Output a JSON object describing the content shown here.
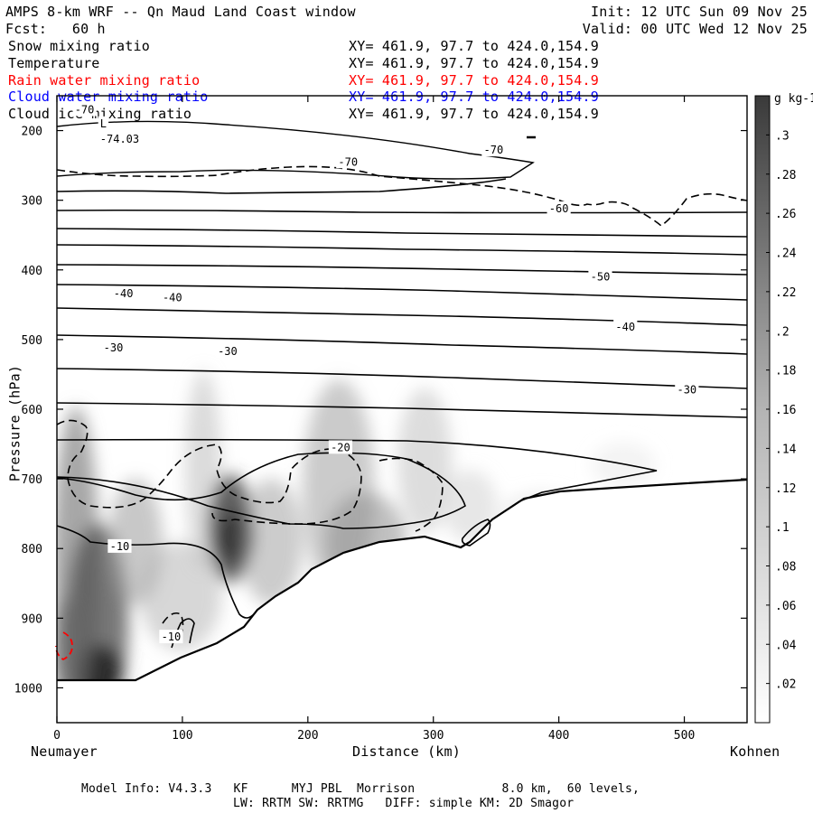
{
  "header": {
    "title": "AMPS 8-km WRF -- Qn Maud Land Coast window",
    "fcst": "Fcst:   60 h",
    "init": "Init: 12 UTC Sun 09 Nov 25",
    "valid": "Valid: 00 UTC Wed 12 Nov 25"
  },
  "fields": [
    {
      "name": "Snow mixing ratio",
      "xy": "XY= 461.9, 97.7 to 424.0,154.9",
      "color": "#000000"
    },
    {
      "name": "Temperature",
      "xy": "XY= 461.9, 97.7 to 424.0,154.9",
      "color": "#000000"
    },
    {
      "name": "Rain water mixing ratio",
      "xy": "XY= 461.9, 97.7 to 424.0,154.9",
      "color": "#ff0000"
    },
    {
      "name": "Cloud water mixing ratio",
      "xy": "XY= 461.9, 97.7 to 424.0,154.9",
      "color": "#0000ff"
    },
    {
      "name": "Cloud ice mixing ratio",
      "xy": "XY= 461.9, 97.7 to 424.0,154.9",
      "color": "#000000"
    }
  ],
  "footer": {
    "line1": "Model Info: V4.3.3   KF      MYJ PBL  Morrison            8.0 km,  60 levels,",
    "line2": "LW: RRTM SW: RRTMG   DIFF: simple KM: 2D Smagor"
  },
  "chart_data": {
    "type": "contour",
    "xlabel": "Distance (km)",
    "ylabel": "Pressure (hPa)",
    "xlim": [
      0,
      550
    ],
    "ylim": [
      1050,
      150
    ],
    "x_ticks": [
      0,
      100,
      200,
      300,
      400,
      500
    ],
    "y_ticks": [
      200,
      300,
      400,
      500,
      600,
      700,
      800,
      900,
      1000
    ],
    "left_label": "Neumayer",
    "right_label": "Kohnen",
    "colorbar": {
      "units": "g kg-1",
      "labels": [
        ".02",
        ".04",
        ".06",
        ".08",
        ".1",
        ".12",
        ".14",
        ".16",
        ".18",
        ".2",
        ".22",
        ".24",
        ".26",
        ".28",
        ".3"
      ],
      "min": 0,
      "max": 0.32
    },
    "temperature_labels": [
      {
        "text": "-70",
        "x": 22,
        "p": 170
      },
      {
        "text": "-74.03",
        "x": 50,
        "p": 212
      },
      {
        "text": "L",
        "x": 37,
        "p": 190
      },
      {
        "text": "-70",
        "x": 232,
        "p": 245
      },
      {
        "text": "-70",
        "x": 348,
        "p": 228
      },
      {
        "text": "-60",
        "x": 400,
        "p": 312
      },
      {
        "text": "-50",
        "x": 433,
        "p": 410
      },
      {
        "text": "-40",
        "x": 53,
        "p": 434
      },
      {
        "text": "-40",
        "x": 92,
        "p": 440
      },
      {
        "text": "-40",
        "x": 453,
        "p": 482
      },
      {
        "text": "-30",
        "x": 45,
        "p": 512
      },
      {
        "text": "-30",
        "x": 136,
        "p": 517
      },
      {
        "text": "-30",
        "x": 502,
        "p": 572
      },
      {
        "text": "-20",
        "x": 226,
        "p": 655
      },
      {
        "text": "-10",
        "x": 50,
        "p": 797
      },
      {
        "text": "-10",
        "x": 91,
        "p": 927
      }
    ]
  }
}
